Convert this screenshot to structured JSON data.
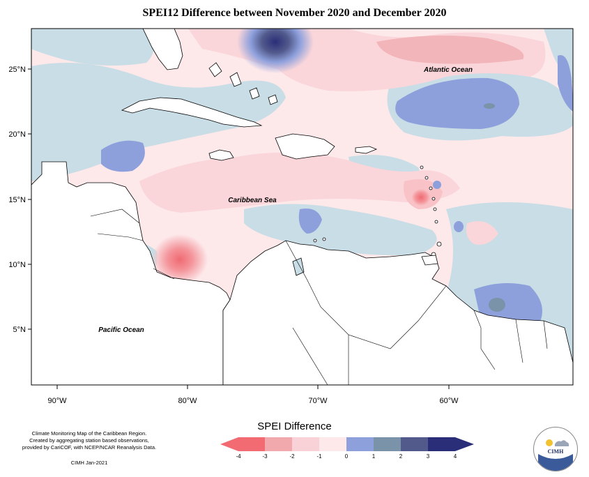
{
  "title": "SPEI12 Difference between November 2020 and December 2020",
  "labels": {
    "atlantic": "Atlantic Ocean",
    "caribbean": "Caribbean Sea",
    "pacific": "Pacific Ocean"
  },
  "axes": {
    "lat_ticks": [
      "25°N",
      "20°N",
      "15°N",
      "10°N",
      "5°N"
    ],
    "lon_ticks": [
      "90°W",
      "80°W",
      "70°W",
      "60°W"
    ]
  },
  "legend": {
    "title": "SPEI Difference",
    "ticks": [
      "-4",
      "-3",
      "-2",
      "-1",
      "0",
      "1",
      "2",
      "3",
      "4"
    ],
    "colors": [
      "#f26b73",
      "#f2a9ad",
      "#f8d2d6",
      "#fde8ea",
      "#c8dde5",
      "#8ea0dc",
      "#7a93a8",
      "#525a8c",
      "#2a2e78"
    ]
  },
  "credits": {
    "line1": "Climate Monitoring Map of the Caribbean Region.",
    "line2": "Created by aggregating station based observations,",
    "line3": "provided by CariCOF, with NCEP/NCAR Reanalysis Data.",
    "date": "CIMH Jan-2021"
  },
  "logo": {
    "text": "CIMH"
  }
}
